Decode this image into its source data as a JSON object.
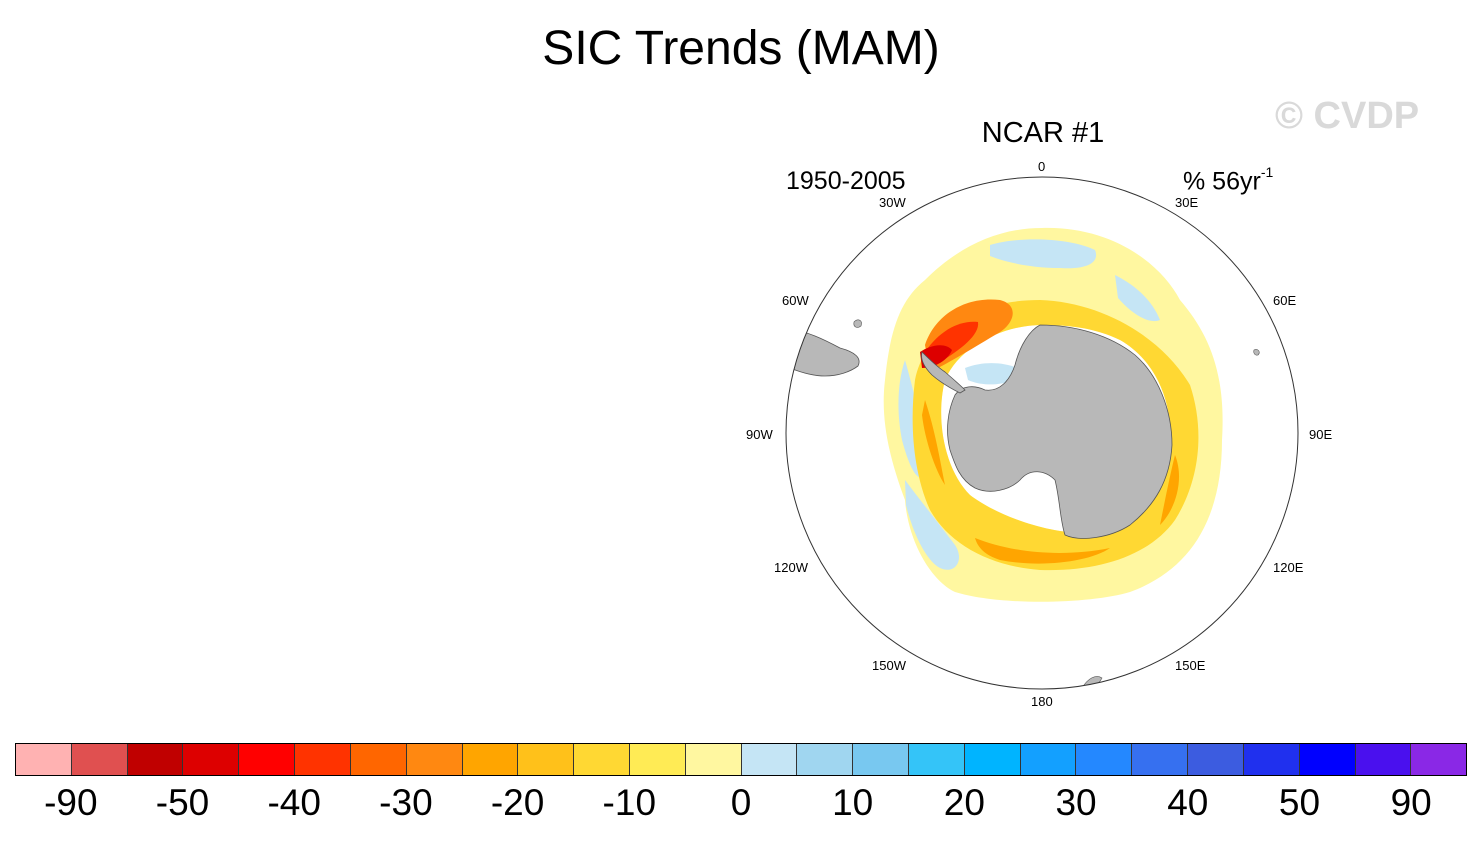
{
  "title": "SIC Trends (MAM)",
  "watermark": "© CVDP",
  "panel": {
    "center_title": "NCAR #1",
    "left_label": "1950-2005",
    "right_label_base": "% 56yr",
    "right_label_exp": "-1",
    "longitude_labels": {
      "top": "0",
      "nne": "30E",
      "ene": "60E",
      "east": "90E",
      "ese": "120E",
      "sse": "150E",
      "bottom": "180",
      "ssw": "150W",
      "wsw": "120W",
      "west": "90W",
      "wnw": "60W",
      "nnw": "30W"
    }
  },
  "colorbar": {
    "colors": [
      "#ffb2b2",
      "#e05050",
      "#c00000",
      "#dd0000",
      "#ff0000",
      "#ff3300",
      "#ff6600",
      "#ff8811",
      "#ffa500",
      "#ffc11a",
      "#ffd833",
      "#ffeb55",
      "#fff7a0",
      "#c5e5f5",
      "#a0d6f0",
      "#78c8f0",
      "#34c4f8",
      "#00b4ff",
      "#13a0ff",
      "#2488ff",
      "#3670f0",
      "#3c5ce0",
      "#2030ee",
      "#0000ff",
      "#4a10ee",
      "#8a28e6"
    ],
    "labels": [
      "-90",
      "-50",
      "-40",
      "-30",
      "-20",
      "-10",
      "0",
      "10",
      "20",
      "30",
      "40",
      "50",
      "90"
    ]
  }
}
